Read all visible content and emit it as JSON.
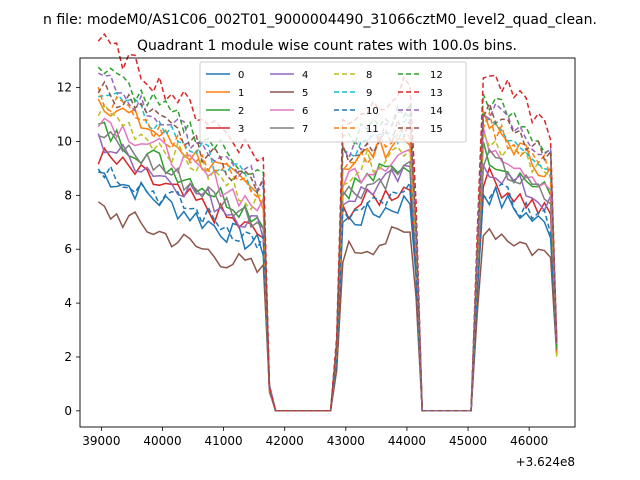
{
  "chart_data": {
    "type": "line",
    "suptitle": "n file: modeM0/AS1C06_002T01_9000004490_31066cztM0_level2_quad_clean.",
    "title": "Quadrant 1 module wise count rates with 100.0s bins.",
    "xlabel": "",
    "ylabel": "",
    "x_offset_label": "+3.624e8",
    "xlim": [
      38650,
      46750
    ],
    "ylim": [
      -0.6,
      13.1
    ],
    "xticks": [
      39000,
      40000,
      41000,
      42000,
      43000,
      44000,
      45000,
      46000
    ],
    "yticks": [
      0,
      2,
      4,
      6,
      8,
      10,
      12
    ],
    "x_start": 38950,
    "x_step": 100,
    "legend_location": "top-center",
    "series": [
      {
        "name": "0",
        "color": "#1f77b4",
        "dashed": false,
        "level": 7.1,
        "values_note": "decreasing from 9 to ~6 in segment 1"
      },
      {
        "name": "1",
        "color": "#ff7f0e",
        "dashed": false,
        "level": 9.3
      },
      {
        "name": "2",
        "color": "#2ca02c",
        "dashed": false,
        "level": 8.4
      },
      {
        "name": "3",
        "color": "#d62728",
        "dashed": false,
        "level": 7.6
      },
      {
        "name": "4",
        "color": "#9467bd",
        "dashed": false,
        "level": 8.0
      },
      {
        "name": "5",
        "color": "#8c564b",
        "dashed": false,
        "level": 6.0
      },
      {
        "name": "6",
        "color": "#e377c2",
        "dashed": false,
        "level": 8.8
      },
      {
        "name": "7",
        "color": "#7f7f7f",
        "dashed": false,
        "level": 8.2
      },
      {
        "name": "8",
        "color": "#bcbd22",
        "dashed": true,
        "level": 9.0
      },
      {
        "name": "9",
        "color": "#17becf",
        "dashed": true,
        "level": 9.6
      },
      {
        "name": "10",
        "color": "#1f77b4",
        "dashed": true,
        "level": 7.3
      },
      {
        "name": "11",
        "color": "#ff7f0e",
        "dashed": true,
        "level": 9.4
      },
      {
        "name": "12",
        "color": "#2ca02c",
        "dashed": true,
        "level": 10.2
      },
      {
        "name": "13",
        "color": "#d62728",
        "dashed": true,
        "level": 11.0
      },
      {
        "name": "14",
        "color": "#9467bd",
        "dashed": true,
        "level": 9.9
      },
      {
        "name": "15",
        "color": "#8c564b",
        "dashed": true,
        "level": 9.7
      }
    ],
    "segments": [
      {
        "x_from": 38950,
        "x_to": 41650,
        "note": "first observation segment (decaying)"
      },
      {
        "x_from": 41700,
        "x_to": 41750,
        "note": "drop near 0.5-1"
      },
      {
        "x_from": 41850,
        "x_to": 42750,
        "note": "gap at 0"
      },
      {
        "x_from": 42850,
        "x_to": 44150,
        "note": "second observation segment"
      },
      {
        "x_from": 44250,
        "x_to": 45050,
        "note": "gap at 0"
      },
      {
        "x_from": 45150,
        "x_to": 46450,
        "note": "third observation segment"
      }
    ]
  }
}
